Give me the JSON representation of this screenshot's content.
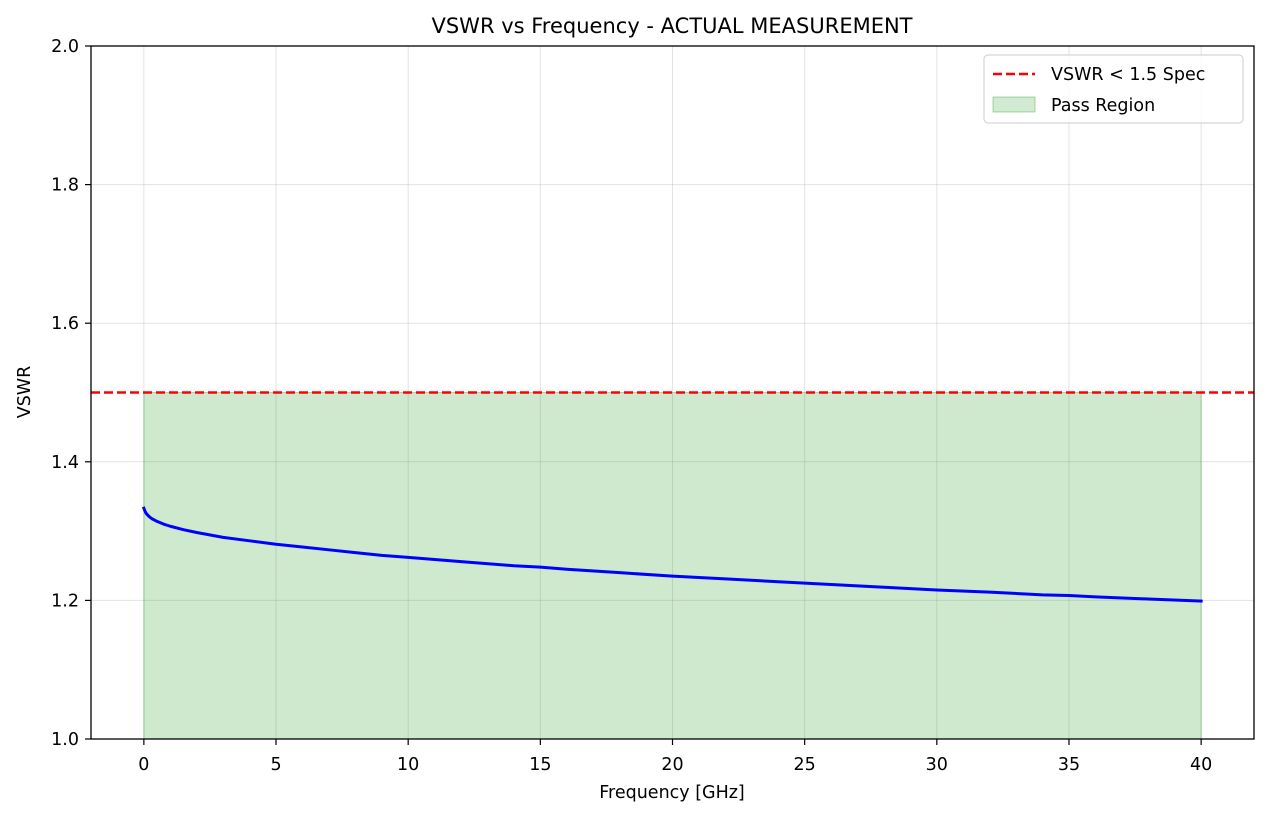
{
  "chart_data": {
    "type": "line",
    "title": "VSWR vs Frequency - ACTUAL MEASUREMENT",
    "xlabel": "Frequency [GHz]",
    "ylabel": "VSWR",
    "xlim": [
      -2,
      42
    ],
    "ylim": [
      1.0,
      2.0
    ],
    "xticks": [
      0,
      5,
      10,
      15,
      20,
      25,
      30,
      35,
      40
    ],
    "yticks": [
      1.0,
      1.2,
      1.4,
      1.6,
      1.8,
      2.0
    ],
    "xtick_labels": [
      "0",
      "5",
      "10",
      "15",
      "20",
      "25",
      "30",
      "35",
      "40"
    ],
    "ytick_labels": [
      "1.0",
      "1.2",
      "1.4",
      "1.6",
      "1.8",
      "2.0"
    ],
    "grid": true,
    "legend_position": "top-right",
    "series": [
      {
        "name": "",
        "color": "#0000ff",
        "x": [
          0,
          0.05,
          0.1,
          0.2,
          0.3,
          0.5,
          0.75,
          1,
          1.5,
          2,
          3,
          4,
          5,
          6,
          7,
          8,
          9,
          10,
          12,
          14,
          15,
          16,
          18,
          20,
          22,
          24,
          25,
          26,
          28,
          30,
          32,
          34,
          35,
          36,
          38,
          40
        ],
        "y": [
          1.333,
          1.328,
          1.325,
          1.321,
          1.318,
          1.314,
          1.31,
          1.307,
          1.302,
          1.298,
          1.291,
          1.286,
          1.281,
          1.277,
          1.273,
          1.269,
          1.265,
          1.262,
          1.256,
          1.25,
          1.248,
          1.245,
          1.24,
          1.235,
          1.231,
          1.227,
          1.225,
          1.223,
          1.219,
          1.215,
          1.212,
          1.208,
          1.207,
          1.205,
          1.202,
          1.199
        ]
      }
    ],
    "reference_line": {
      "name": "VSWR < 1.5 Spec",
      "y": 1.5,
      "color": "#ff0000",
      "style": "dashed"
    },
    "pass_region": {
      "name": "Pass Region",
      "x": [
        0,
        40
      ],
      "y": [
        1.0,
        1.5
      ],
      "color": "#2ca02c"
    },
    "legend": [
      {
        "label": "VSWR < 1.5 Spec",
        "kind": "dashed-line",
        "color": "#ff0000"
      },
      {
        "label": "Pass Region",
        "kind": "patch",
        "color": "#2ca02c"
      }
    ]
  }
}
